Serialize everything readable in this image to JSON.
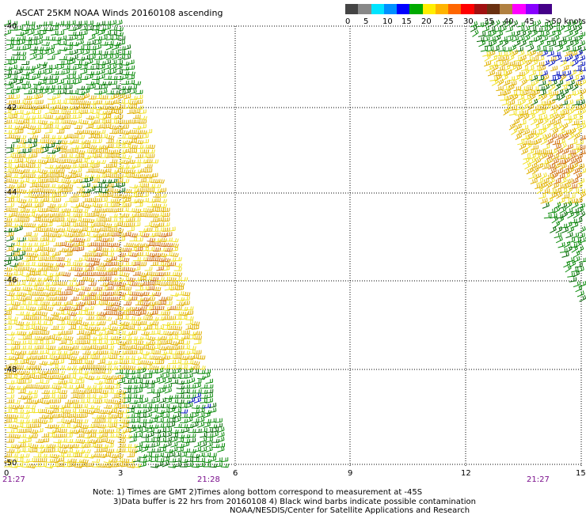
{
  "title": "ASCAT 25KM NOAA Winds 20160108 ascending",
  "legend": {
    "labels": [
      "0",
      "5",
      "10",
      "15",
      "20",
      "25",
      "30",
      "35",
      "40",
      "45",
      ">50 knots"
    ],
    "colors": [
      "#444444",
      "#888888",
      "#00e4ff",
      "#0090ff",
      "#0000ff",
      "#00aa00",
      "#ffee00",
      "#ffb400",
      "#ff6600",
      "#ff0000",
      "#a01010",
      "#6a3010",
      "#b08040",
      "#ff00ff",
      "#8800ff",
      "#440088"
    ]
  },
  "y_axis_labels": [
    "-40",
    "-42",
    "-44",
    "-46",
    "-48",
    "-50"
  ],
  "x_axis_labels": [
    "0",
    "3",
    "6",
    "9",
    "12",
    "15"
  ],
  "times": [
    "21:27",
    "21:28",
    "21:27"
  ],
  "notes": [
    "Note: 1) Times are GMT 2)Times along bottom correspond to measurement at -45S",
    "3)Data buffer is 22 hrs from 20160108 4) Black wind barbs indicate possible contamination",
    "NOAA/NESDIS/Center for Satellite Applications and Research"
  ],
  "barb_colors": {
    "green": "#0a8a0a",
    "dark_green": "#006400",
    "yellow": "#f0e020",
    "gold": "#e0b000",
    "orange": "#d07010",
    "blue": "#0010c0"
  }
}
